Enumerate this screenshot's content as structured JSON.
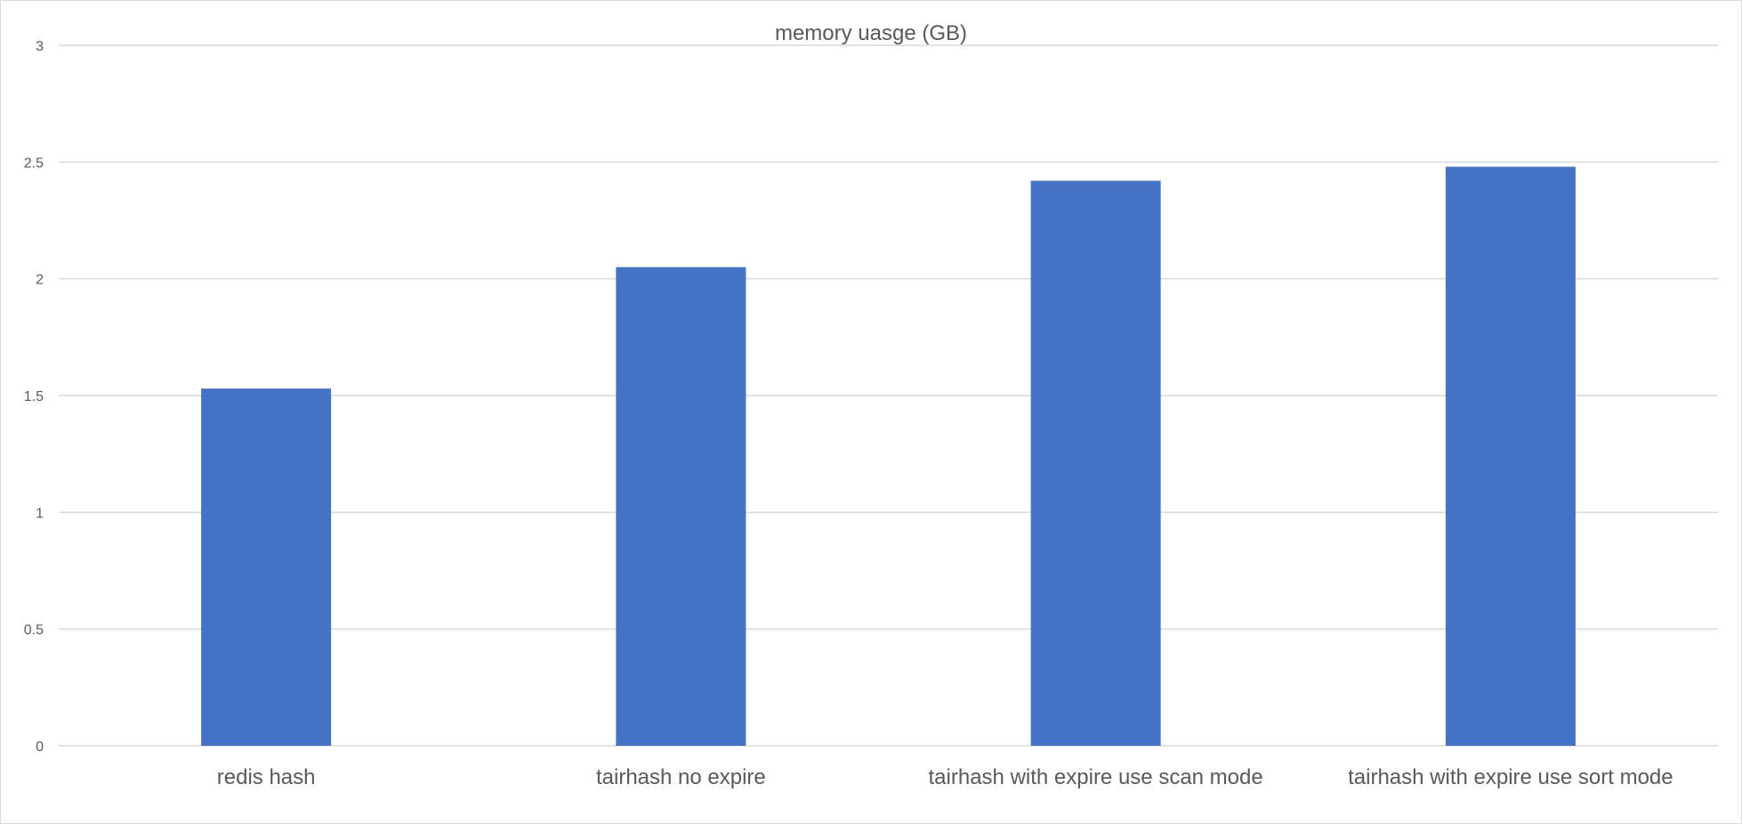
{
  "chart_data": {
    "type": "bar",
    "title": "memory uasge (GB)",
    "xlabel": "",
    "ylabel": "",
    "categories": [
      "redis hash",
      "tairhash no expire",
      "tairhash with expire use  scan mode",
      "tairhash with expire use sort mode"
    ],
    "values": [
      1.53,
      2.05,
      2.42,
      2.48
    ],
    "ylim": [
      0,
      3
    ],
    "yticks": [
      "0",
      "0.5",
      "1",
      "1.5",
      "2",
      "2.5",
      "3"
    ],
    "ytick_values": [
      0,
      0.5,
      1,
      1.5,
      2,
      2.5,
      3
    ],
    "grid": true,
    "legend": "none",
    "bar_color": "#4472C4"
  }
}
